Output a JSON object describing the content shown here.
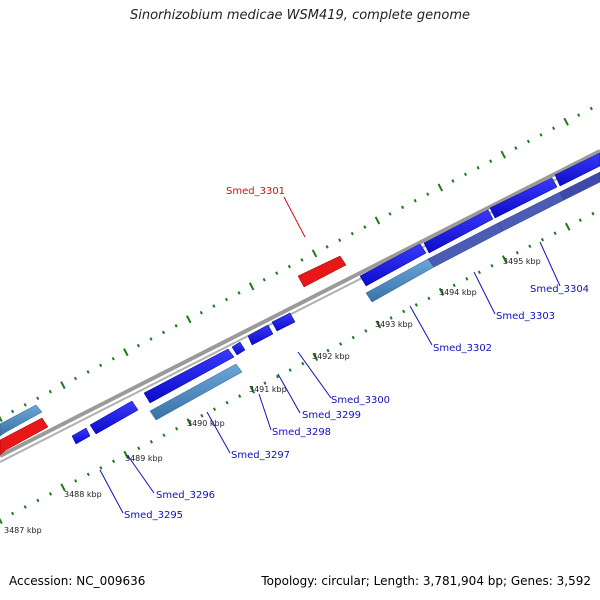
{
  "title": "Sinorhizobium medicae WSM419, complete genome",
  "footer": {
    "accession": "Accession: NC_009636",
    "summary": "Topology: circular; Length: 3,781,904 bp; Genes: 3,592"
  },
  "colors": {
    "forward_cds": "#1414e0",
    "reverse_cds": "#4a86bf",
    "rna": "#e81818",
    "backbone": "#8c8c8c",
    "tick": "#1f7a1f",
    "label_blue": "#1010c0",
    "label_red": "#d01010"
  },
  "kbp_labels": [
    "3487 kbp",
    "3488 kbp",
    "3489 kbp",
    "3490 kbp",
    "3491 kbp",
    "3492 kbp",
    "3493 kbp",
    "3494 kbp",
    "3495 kbp"
  ],
  "gene_labels": [
    {
      "text": "Smed_3295",
      "color": "blue"
    },
    {
      "text": "Smed_3296",
      "color": "blue"
    },
    {
      "text": "Smed_3297",
      "color": "blue"
    },
    {
      "text": "Smed_3298",
      "color": "blue"
    },
    {
      "text": "Smed_3299",
      "color": "blue"
    },
    {
      "text": "Smed_3300",
      "color": "blue"
    },
    {
      "text": "Smed_3301",
      "color": "red"
    },
    {
      "text": "Smed_3302",
      "color": "blue"
    },
    {
      "text": "Smed_3303",
      "color": "blue"
    },
    {
      "text": "Smed_3304",
      "color": "blue"
    }
  ]
}
